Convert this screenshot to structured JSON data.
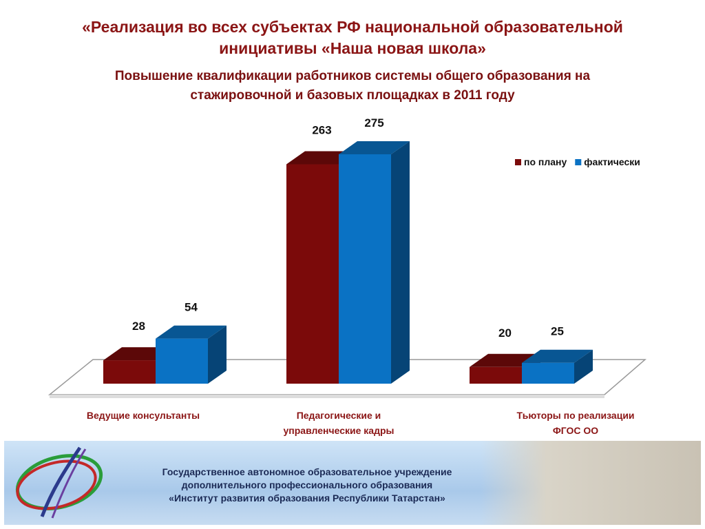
{
  "chart_data": {
    "type": "bar3d",
    "title": "«Реализация во всех субъектах РФ национальной образовательной\nинициативы «Наша новая школа»",
    "subtitle": "Повышение квалификации работников системы общего образования на\nстажировочной и базовых площадках  в 2011 году",
    "categories": [
      "Ведущие консультанты",
      "Педагогические  и\nуправленческие кадры",
      "Тьюторы по реализации\nФГОС ОО"
    ],
    "series": [
      {
        "name": "по плану",
        "color": "#7b0a0a",
        "values": [
          28,
          263,
          20
        ]
      },
      {
        "name": "фактически",
        "color": "#0a72c4",
        "values": [
          54,
          275,
          25
        ]
      }
    ],
    "legend": "top-right"
  },
  "footer": {
    "lines": [
      "Государственное автономное образовательное учреждение",
      "дополнительного профессионального образования",
      "«Институт развития образования Республики Татарстан»"
    ]
  }
}
